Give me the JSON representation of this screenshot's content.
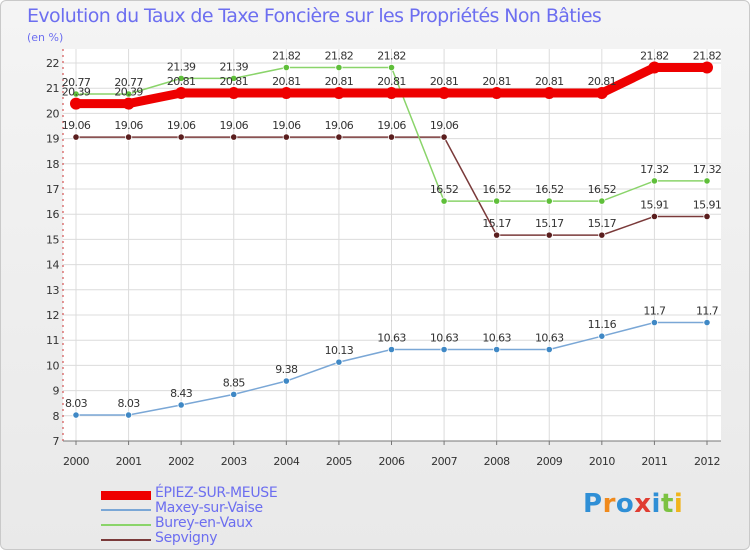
{
  "title": "Evolution du Taux de Taxe Foncière sur les Propriétés Non Bâties",
  "subtitle": "(en %)",
  "brand": {
    "text": "Proxiti",
    "letters": [
      {
        "ch": "P",
        "color": "#2f8fd6"
      },
      {
        "ch": "r",
        "color": "#f08a1c"
      },
      {
        "ch": "o",
        "color": "#2f8fd6"
      },
      {
        "ch": "x",
        "color": "#e03c31"
      },
      {
        "ch": "i",
        "color": "#2f8fd6"
      },
      {
        "ch": "t",
        "color": "#7cc242"
      },
      {
        "ch": "i",
        "color": "#f0b41c"
      }
    ]
  },
  "chart_data": {
    "type": "line",
    "title": "Evolution du Taux de Taxe Foncière sur les Propriétés Non Bâties",
    "ylabel": "(en %)",
    "xlabel": "",
    "categories": [
      "2000",
      "2001",
      "2002",
      "2003",
      "2004",
      "2005",
      "2006",
      "2007",
      "2008",
      "2009",
      "2010",
      "2011",
      "2012"
    ],
    "ylim": [
      7,
      22
    ],
    "yticks": [
      7,
      8,
      9,
      10,
      11,
      12,
      13,
      14,
      15,
      16,
      17,
      18,
      19,
      20,
      21,
      22
    ],
    "grid": true,
    "legend_position": "bottom-left",
    "series": [
      {
        "name": "ÉPIEZ-SUR-MEUSE",
        "color": "#ee0000",
        "width": "thick",
        "values": [
          20.39,
          20.39,
          20.81,
          20.81,
          20.81,
          20.81,
          20.81,
          20.81,
          20.81,
          20.81,
          20.81,
          21.82,
          21.82
        ],
        "labels": [
          "20.39",
          "20.39",
          "20.81",
          "20.81",
          "20.81",
          "20.81",
          "20.81",
          "20.81",
          "20.81",
          "20.81",
          "20.81",
          "21.82",
          "21.82"
        ]
      },
      {
        "name": "Maxey-sur-Vaise",
        "color": "#7aa7d6",
        "marker": "#3f88c5",
        "values": [
          8.03,
          8.03,
          8.43,
          8.85,
          9.38,
          10.13,
          10.63,
          10.63,
          10.63,
          10.63,
          11.16,
          11.7,
          11.7
        ],
        "labels": [
          "8.03",
          "8.03",
          "8.43",
          "8.85",
          "9.38",
          "10.13",
          "10.63",
          "10.63",
          "10.63",
          "10.63",
          "11.16",
          "11.7",
          "11.7"
        ]
      },
      {
        "name": "Burey-en-Vaux",
        "color": "#8ad46a",
        "marker": "#5fbf3a",
        "values": [
          20.77,
          20.77,
          21.39,
          21.39,
          21.82,
          21.82,
          21.82,
          16.52,
          16.52,
          16.52,
          16.52,
          17.32,
          17.32
        ],
        "labels": [
          "20.77",
          "20.77",
          "21.39",
          "21.39",
          "21.82",
          "21.82",
          "21.82",
          "16.52",
          "16.52",
          "16.52",
          "16.52",
          "17.32",
          "17.32"
        ]
      },
      {
        "name": "Sepvigny",
        "color": "#7a3a3a",
        "marker": "#5a1e1e",
        "values": [
          19.06,
          19.06,
          19.06,
          19.06,
          19.06,
          19.06,
          19.06,
          19.06,
          15.17,
          15.17,
          15.17,
          15.91,
          15.91
        ],
        "labels": [
          "19.06",
          "19.06",
          "19.06",
          "19.06",
          "19.06",
          "19.06",
          "19.06",
          "19.06",
          "15.17",
          "15.17",
          "15.17",
          "15.91",
          "15.91"
        ]
      }
    ]
  }
}
